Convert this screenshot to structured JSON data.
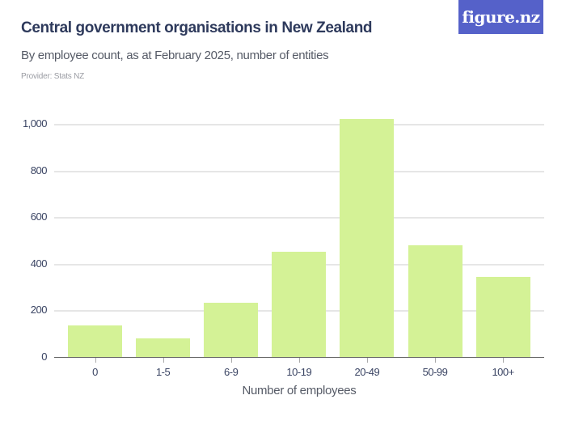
{
  "header": {
    "title": "Central government organisations in New Zealand",
    "subtitle": "By employee count, as at February 2025, number of entities",
    "provider": "Provider: Stats NZ",
    "logo": "figure.nz"
  },
  "colors": {
    "bar": "#d4f296",
    "logo_bg": "#5561c9",
    "title": "#2e3a5c"
  },
  "chart_data": {
    "type": "bar",
    "title": "Central government organisations in New Zealand",
    "subtitle": "By employee count, as at February 2025, number of entities",
    "xlabel": "Number of employees",
    "ylabel": "",
    "categories": [
      "0",
      "1-5",
      "6-9",
      "10-19",
      "20-49",
      "50-99",
      "100+"
    ],
    "values": [
      139,
      81,
      236,
      453,
      1023,
      484,
      346
    ],
    "ylim": [
      0,
      1000
    ],
    "yticks": [
      0,
      200,
      400,
      600,
      800,
      1000
    ],
    "ytick_labels": [
      "0",
      "200",
      "400",
      "600",
      "800",
      "1,000"
    ],
    "grid": true,
    "legend": null
  }
}
